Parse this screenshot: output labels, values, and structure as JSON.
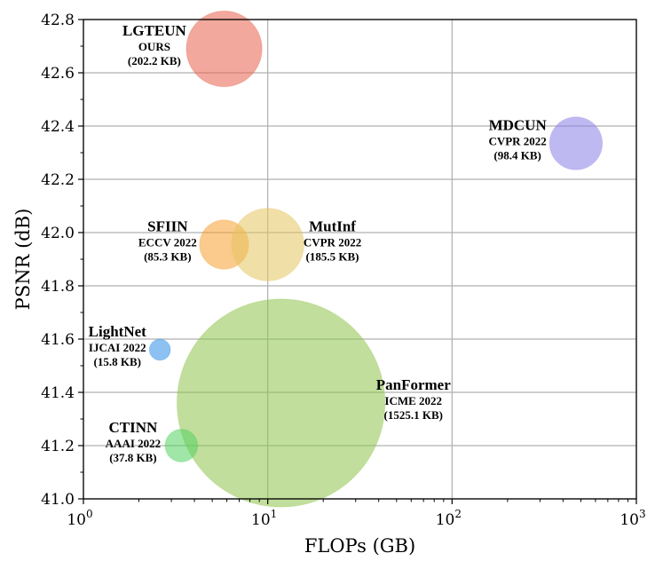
{
  "chart_data": {
    "type": "scatter",
    "title": "",
    "xlabel": "FLOPs (GB)",
    "ylabel": "PSNR (dB)",
    "xscale": "log",
    "xlim": [
      1,
      1000
    ],
    "ylim": [
      41.0,
      42.8
    ],
    "x_tick_labels": [
      {
        "value": 1,
        "base": "10",
        "exp": "0"
      },
      {
        "value": 10,
        "base": "10",
        "exp": "1"
      },
      {
        "value": 100,
        "base": "10",
        "exp": "2"
      },
      {
        "value": 1000,
        "base": "10",
        "exp": "3"
      }
    ],
    "y_ticks": [
      41.0,
      41.2,
      41.4,
      41.6,
      41.8,
      42.0,
      42.2,
      42.4,
      42.6,
      42.8
    ],
    "y_tick_labels": [
      "41.0",
      "41.2",
      "41.4",
      "41.6",
      "41.8",
      "42.0",
      "42.2",
      "42.4",
      "42.6",
      "42.8"
    ],
    "grid": true,
    "bubble_size_meaning": "parameters (KB)",
    "points": [
      {
        "name": "LGTEUN",
        "venue": "OURS",
        "params": "(202.2 KB)",
        "params_kb": 202.2,
        "x": 5.8,
        "y": 42.69,
        "color": "#e8604a",
        "name_color": "#e8141e",
        "label_side": "left"
      },
      {
        "name": "MDCUN",
        "venue": "CVPR 2022",
        "params": "(98.4 KB)",
        "params_kb": 98.4,
        "x": 470,
        "y": 42.335,
        "color": "#8a80e8",
        "name_color": "#000000",
        "label_side": "left"
      },
      {
        "name": "SFIIN",
        "venue": "ECCV 2022",
        "params": "(85.3 KB)",
        "params_kb": 85.3,
        "x": 5.8,
        "y": 41.955,
        "color": "#f5a030",
        "name_color": "#000000",
        "label_side": "left"
      },
      {
        "name": "MutInf",
        "venue": "CVPR 2022",
        "params": "(185.5 KB)",
        "params_kb": 185.5,
        "x": 10,
        "y": 41.955,
        "color": "#e6c460",
        "name_color": "#000000",
        "label_side": "right"
      },
      {
        "name": "LightNet",
        "venue": "IJCAI 2022",
        "params": "(15.8 KB)",
        "params_kb": 15.8,
        "x": 2.6,
        "y": 41.56,
        "color": "#2e8ee8",
        "name_color": "#000000",
        "label_side": "left"
      },
      {
        "name": "PanFormer",
        "venue": "ICME 2022",
        "params": "(1525.1 KB)",
        "params_kb": 1525.1,
        "x": 11.8,
        "y": 41.36,
        "color": "#8ec24a",
        "name_color": "#000000",
        "label_side": "right"
      },
      {
        "name": "CTINN",
        "venue": "AAAI 2022",
        "params": "(37.8 KB)",
        "params_kb": 37.8,
        "x": 3.4,
        "y": 41.2,
        "color": "#52d25e",
        "name_color": "#000000",
        "label_side": "left"
      }
    ]
  }
}
